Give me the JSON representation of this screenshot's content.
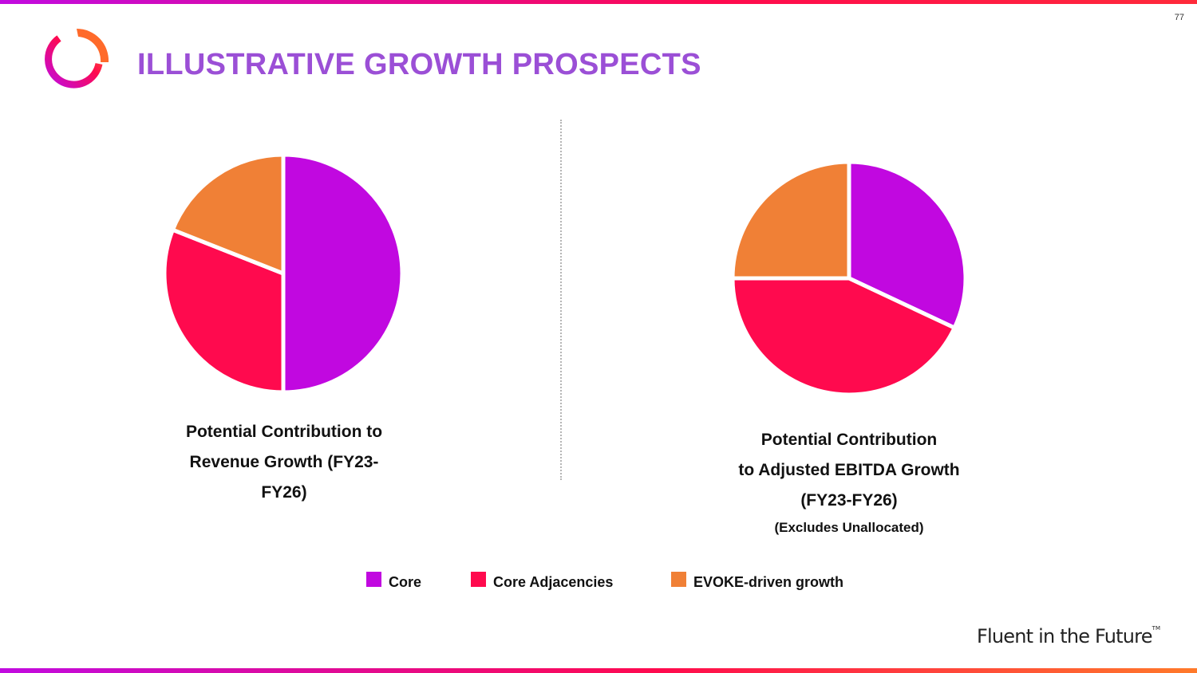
{
  "page": {
    "number": "77",
    "title": "ILLUSTRATIVE GROWTH PROSPECTS",
    "tagline": "Fluent in the Future",
    "tagline_mark": "TM"
  },
  "colors": {
    "core": "#c108e0",
    "core_adjacencies": "#ff0a4e",
    "evoke": "#f08036",
    "title": "#9b4fd6"
  },
  "legend": [
    {
      "label": "Core",
      "color": "#c108e0"
    },
    {
      "label": "Core Adjacencies",
      "color": "#ff0a4e"
    },
    {
      "label": "EVOKE-driven growth",
      "color": "#f08036"
    }
  ],
  "chart_data": [
    {
      "type": "pie",
      "title": "Potential Contribution to Revenue Growth (FY23-FY26)",
      "title_lines": [
        "Potential Contribution to",
        "Revenue Growth (FY23-",
        "FY26)"
      ],
      "categories": [
        "Core",
        "Core Adjacencies",
        "EVOKE-driven growth"
      ],
      "values": [
        50,
        31,
        19
      ],
      "start_angle_deg": 0,
      "direction": "clockwise"
    },
    {
      "type": "pie",
      "title": "Potential Contribution to Adjusted EBITDA Growth (FY23-FY26)",
      "title_lines": [
        "Potential Contribution",
        "to Adjusted EBITDA Growth",
        "(FY23-FY26)"
      ],
      "note": "(Excludes Unallocated)",
      "categories": [
        "Core",
        "Core Adjacencies",
        "EVOKE-driven growth"
      ],
      "values": [
        32,
        43,
        25
      ],
      "start_angle_deg": 0,
      "direction": "clockwise"
    }
  ]
}
